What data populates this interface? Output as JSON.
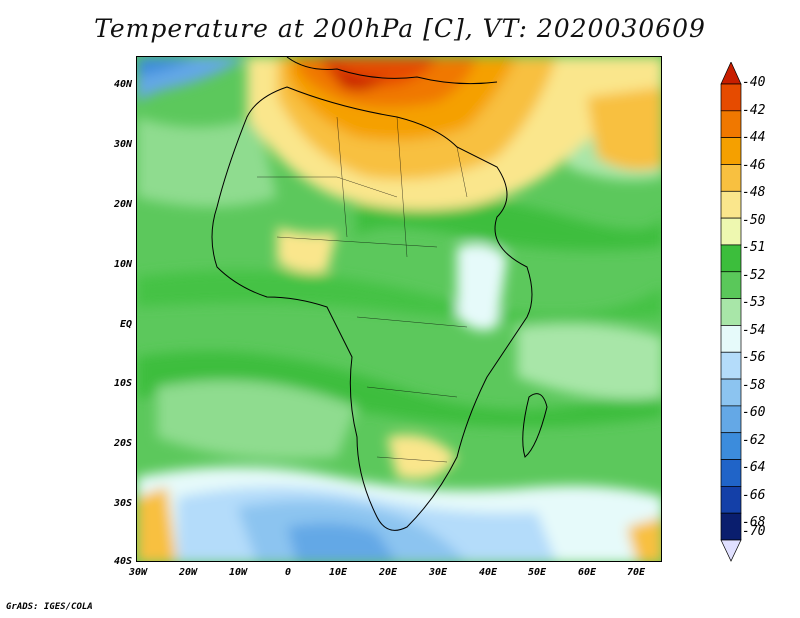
{
  "title": "Temperature at 200hPa [C], VT: 2020030609",
  "footer": "GrADS: IGES/COLA",
  "map": {
    "projection": "lat-lon",
    "lon_range": [
      -30,
      75
    ],
    "lat_range": [
      -40,
      45
    ],
    "lat_labels": [
      "40N",
      "30N",
      "20N",
      "10N",
      "EQ",
      "10S",
      "20S",
      "30S",
      "40S"
    ],
    "lon_labels": [
      "30W",
      "20W",
      "10W",
      "0",
      "10E",
      "20E",
      "30E",
      "40E",
      "50E",
      "60E",
      "70E"
    ],
    "field": "air temperature at 200 hPa",
    "units": "C"
  },
  "colorbar": {
    "labels": [
      "-40",
      "-42",
      "-44",
      "-46",
      "-48",
      "-50",
      "-51",
      "-52",
      "-53",
      "-54",
      "-56",
      "-58",
      "-60",
      "-62",
      "-64",
      "-66",
      "-68",
      "-70"
    ],
    "colors": [
      "#c81e00",
      "#e64b00",
      "#f07800",
      "#f5a000",
      "#f8c040",
      "#fae68c",
      "#eef8b0",
      "#3cbe3c",
      "#5ac85a",
      "#a8e6a8",
      "#e6fafa",
      "#b4dcfa",
      "#8cc4f0",
      "#64a8e6",
      "#3c8cdc",
      "#2064c8",
      "#1440a8",
      "#0a1e6e",
      "#e0e0ff"
    ],
    "top_color": "#c81e00",
    "bottom_color": "#e0e0ff"
  }
}
